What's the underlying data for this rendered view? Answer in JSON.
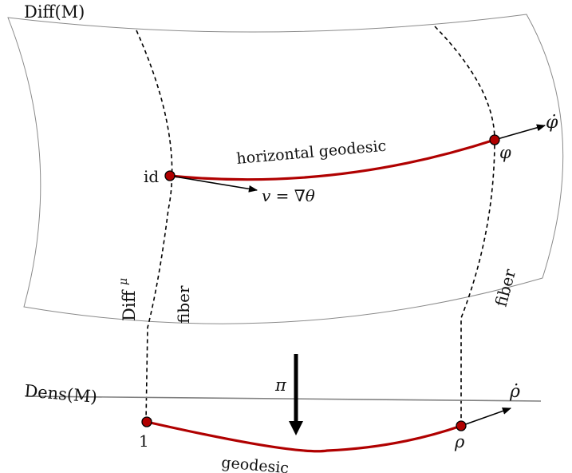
{
  "labels": {
    "diff_space": "Diff(M)",
    "dens_space": "Dens(M)",
    "identity": "id",
    "phi": "φ",
    "phi_dot": "φ̇",
    "horizontal_geodesic": "horizontal geodesic",
    "velocity": "v = ∇θ",
    "diff_mu": "Diff",
    "diff_mu_sub": "μ",
    "fiber_left": "fiber",
    "fiber_right": "fiber",
    "projection": "π",
    "geodesic": "geodesic",
    "one": "1",
    "rho": "ρ",
    "rho_dot": "ρ̇"
  },
  "colors": {
    "surface": "#8a8a8a",
    "geodesic": "#b00000",
    "point": "#b00000",
    "ink": "#000000",
    "dens_line": "#808080"
  }
}
